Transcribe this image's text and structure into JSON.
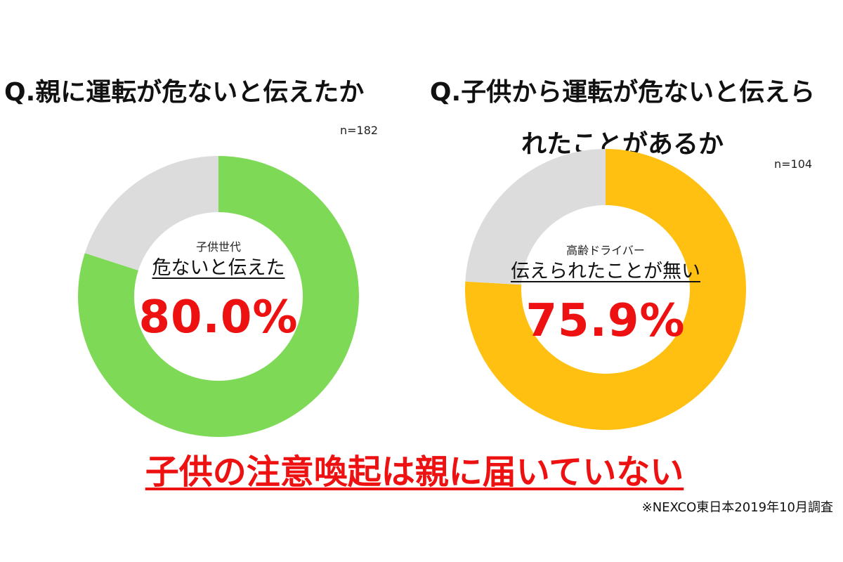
{
  "charts": [
    {
      "question": "Q.親に運転が危ないと伝えたか",
      "sample_size": "n=182",
      "group_label": "子供世代",
      "statement": "危ないと伝えた",
      "percent_label": "80.0%"
    },
    {
      "question": "Q.子供から運転が危ないと伝えられたことがあるか",
      "sample_size": "n=104",
      "group_label": "高齢ドライバー",
      "statement": "伝えられたことが無い",
      "percent_label": "75.9%"
    }
  ],
  "chart_data": [
    {
      "type": "pie",
      "variant": "donut",
      "title": "Q.親に運転が危ないと伝えたか",
      "slices": [
        {
          "label": "危ないと伝えた",
          "value": 80.0,
          "color": "#7ed957"
        },
        {
          "label": "",
          "value": 20.0,
          "color": "#dcdcdc"
        }
      ]
    },
    {
      "type": "pie",
      "variant": "donut",
      "title": "Q.子供から運転が危ないと伝えられたことがあるか",
      "slices": [
        {
          "label": "伝えられたことが無い",
          "value": 75.9,
          "color": "#ffc012"
        },
        {
          "label": "",
          "value": 24.1,
          "color": "#dcdcdc"
        }
      ]
    }
  ],
  "conclusion": "子供の注意喚起は親に届いていない",
  "source_note": "※NEXCO東日本2019年10月調査",
  "colors": {
    "highlight_red": "#ee1111",
    "green": "#7ed957",
    "yellow": "#ffc012",
    "gray": "#dcdcdc"
  }
}
